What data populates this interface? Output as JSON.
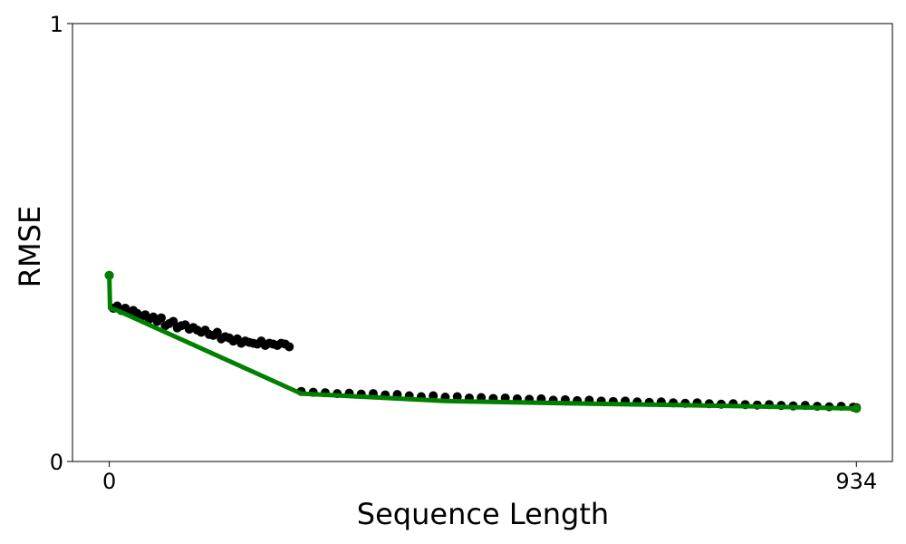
{
  "chart_data": {
    "type": "scatter",
    "title": "",
    "xlabel": "Sequence Length",
    "ylabel": "RMSE",
    "xlim": [
      -46,
      979
    ],
    "ylim": [
      0,
      1
    ],
    "x_ticks": [
      {
        "value": 0,
        "label": "0"
      },
      {
        "value": 934,
        "label": "934"
      }
    ],
    "y_ticks": [
      {
        "value": 0,
        "label": "0"
      },
      {
        "value": 1,
        "label": "1"
      }
    ],
    "grid": false,
    "legend": "none",
    "colors": {
      "points": "#000000",
      "trend": "#008000"
    },
    "series": [
      {
        "kind": "scatter",
        "x": [
          0,
          5,
          10,
          15,
          20,
          25,
          30,
          35,
          40,
          45,
          50,
          55,
          60,
          65,
          70,
          75,
          80,
          85,
          90,
          95,
          100,
          105,
          110,
          115,
          120,
          125,
          130,
          135,
          140,
          145,
          150,
          155,
          160,
          165,
          170,
          175,
          180,
          185,
          190,
          195,
          200,
          205,
          210,
          215,
          220,
          225,
          240,
          255,
          270,
          285,
          300,
          315,
          330,
          345,
          360,
          375,
          390,
          405,
          420,
          435,
          450,
          465,
          480,
          495,
          510,
          525,
          540,
          555,
          570,
          585,
          600,
          615,
          630,
          645,
          660,
          675,
          690,
          705,
          720,
          735,
          750,
          765,
          780,
          795,
          810,
          825,
          840,
          855,
          870,
          885,
          900,
          915,
          930,
          934
        ],
        "y": [
          0.425,
          0.35,
          0.355,
          0.345,
          0.35,
          0.34,
          0.345,
          0.338,
          0.33,
          0.335,
          0.325,
          0.33,
          0.32,
          0.328,
          0.31,
          0.315,
          0.32,
          0.305,
          0.31,
          0.312,
          0.302,
          0.306,
          0.3,
          0.295,
          0.3,
          0.29,
          0.288,
          0.295,
          0.28,
          0.285,
          0.282,
          0.275,
          0.28,
          0.27,
          0.275,
          0.272,
          0.27,
          0.268,
          0.275,
          0.265,
          0.27,
          0.268,
          0.265,
          0.27,
          0.268,
          0.262,
          0.16,
          0.158,
          0.157,
          0.155,
          0.156,
          0.154,
          0.155,
          0.152,
          0.153,
          0.15,
          0.148,
          0.15,
          0.147,
          0.148,
          0.145,
          0.146,
          0.144,
          0.145,
          0.143,
          0.142,
          0.143,
          0.14,
          0.141,
          0.139,
          0.14,
          0.138,
          0.137,
          0.138,
          0.136,
          0.135,
          0.136,
          0.134,
          0.133,
          0.134,
          0.132,
          0.131,
          0.132,
          0.13,
          0.129,
          0.13,
          0.128,
          0.127,
          0.128,
          0.126,
          0.125,
          0.126,
          0.124,
          0.123
        ]
      },
      {
        "kind": "line",
        "x": [
          0,
          1,
          10,
          240,
          420,
          600,
          800,
          934
        ],
        "y": [
          0.425,
          0.35,
          0.345,
          0.155,
          0.138,
          0.132,
          0.126,
          0.121
        ]
      }
    ]
  }
}
